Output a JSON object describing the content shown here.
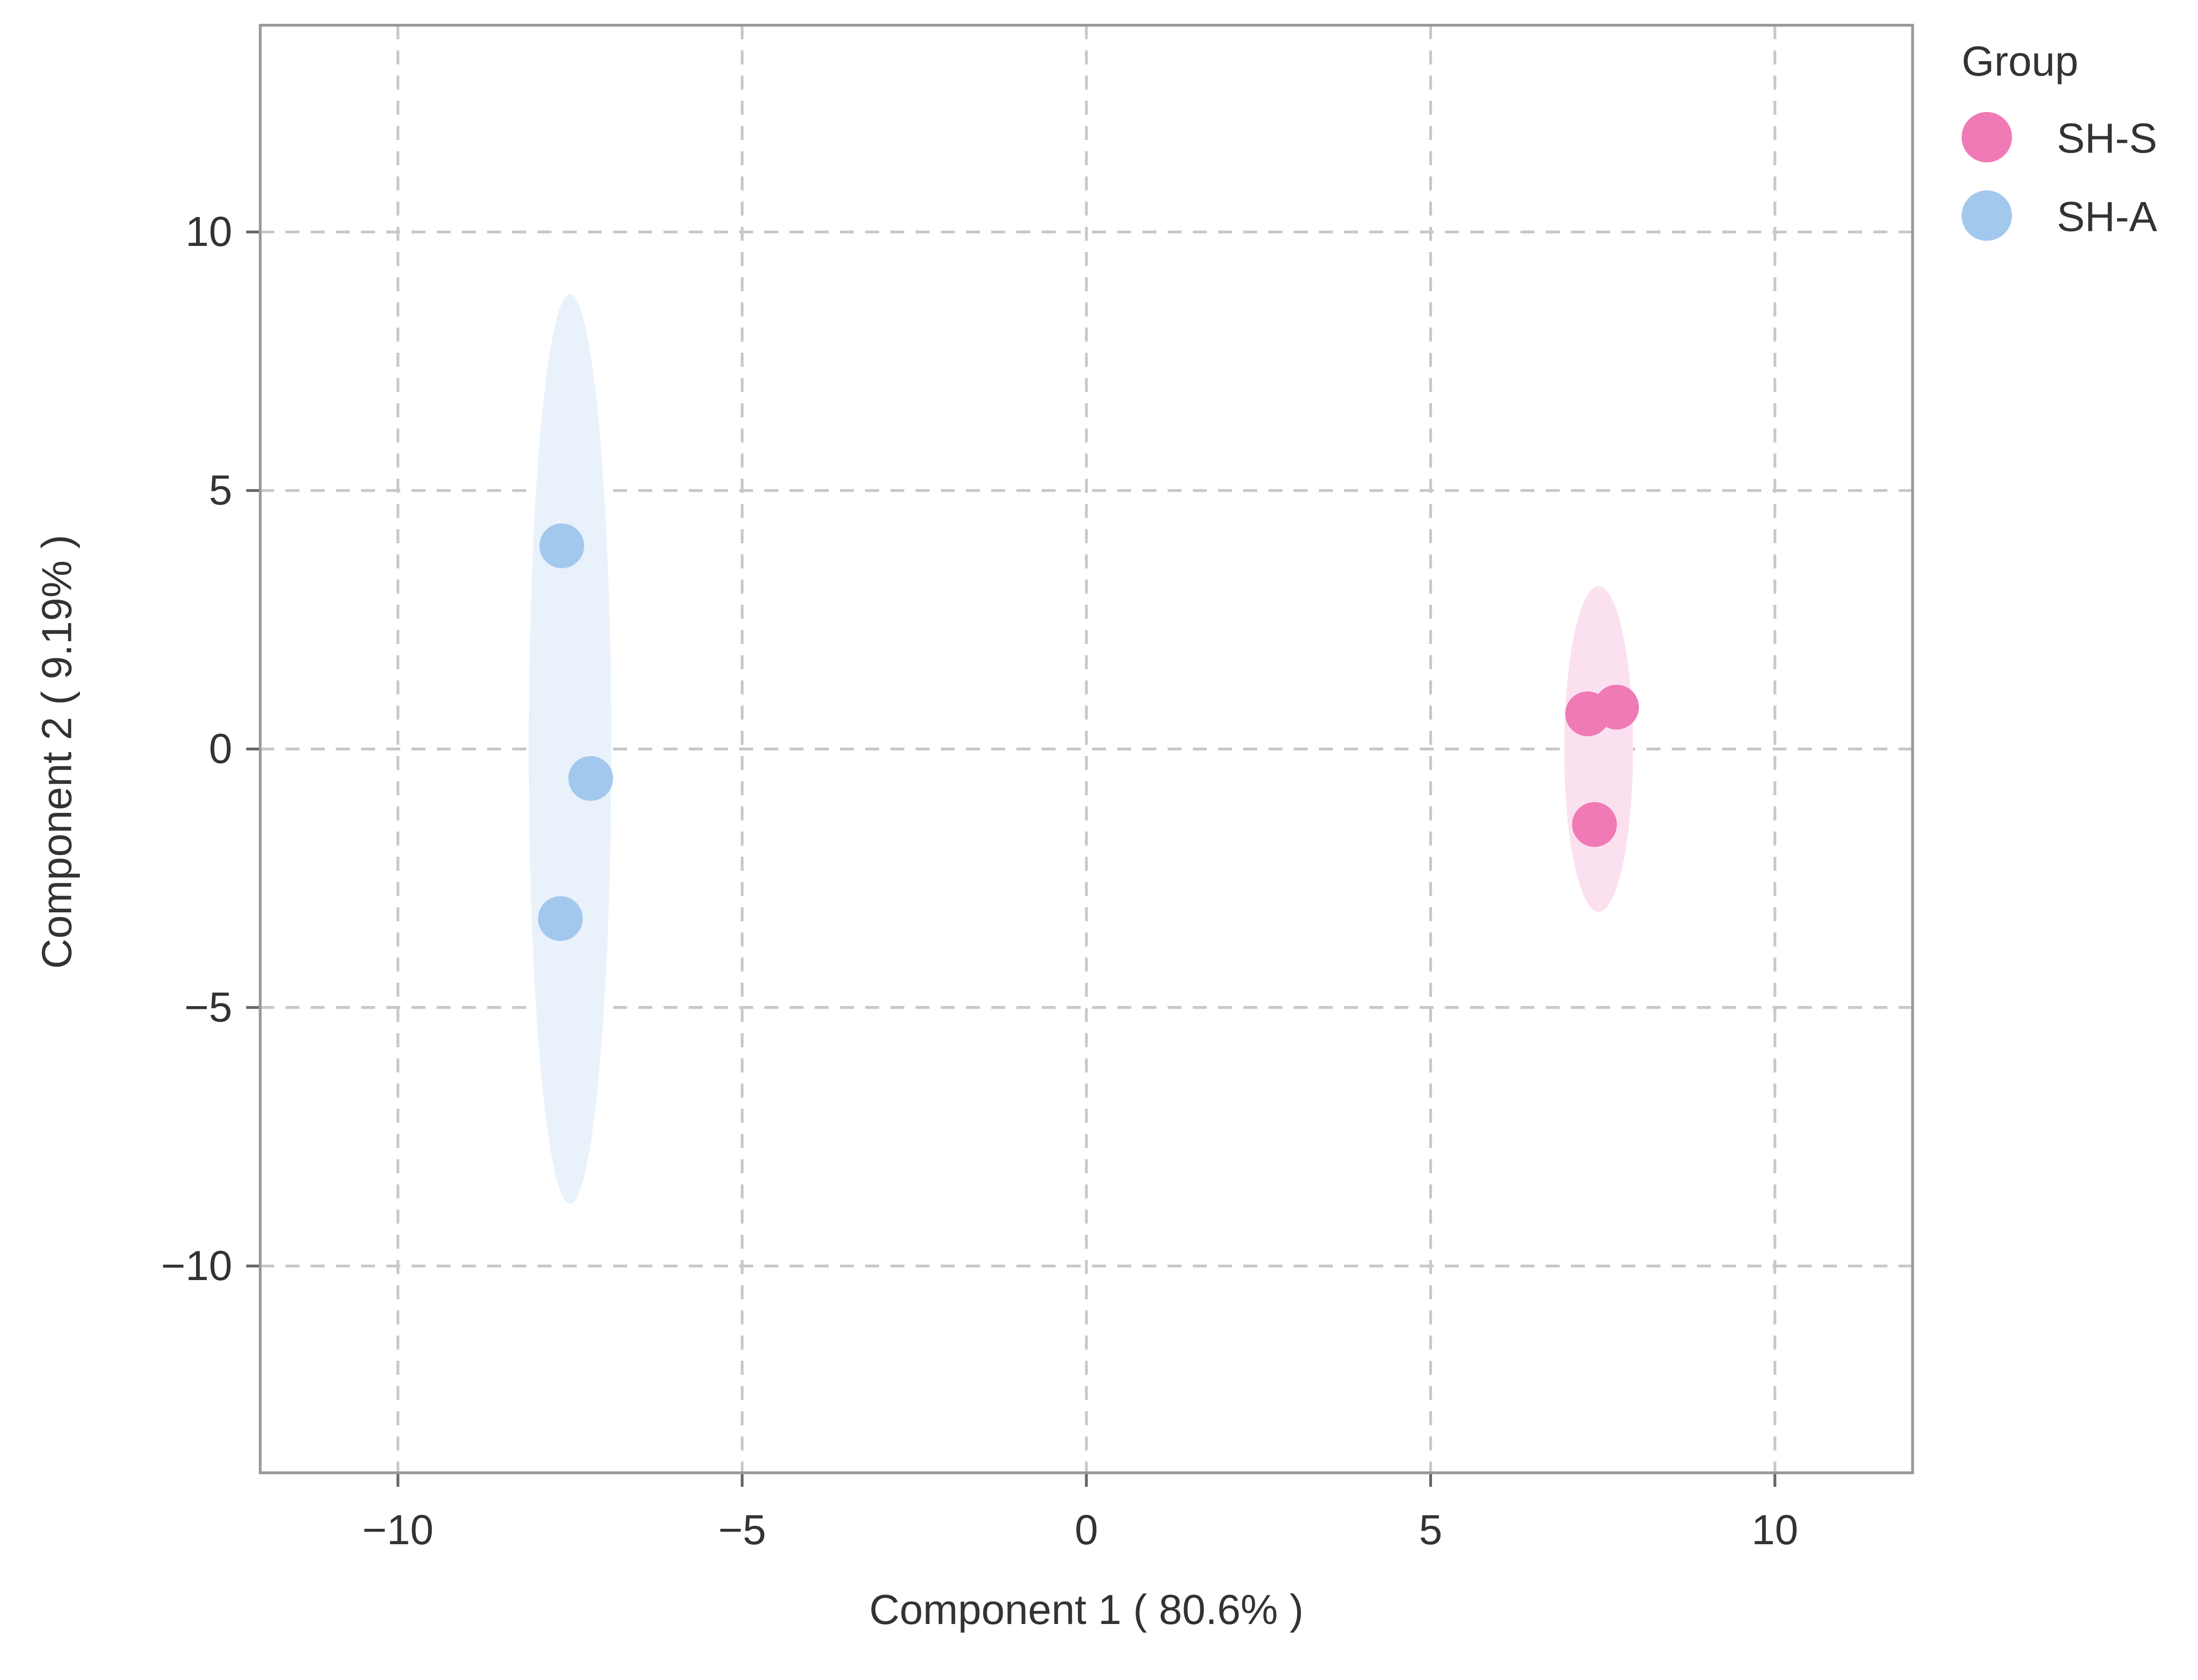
{
  "chart_data": {
    "type": "scatter",
    "x_label": "Component 1 ( 80.6% )",
    "y_label": "Component 2 ( 9.19% )",
    "legend_title": "Group",
    "legend_position": "right",
    "grid": true,
    "xlim": [
      -12,
      12
    ],
    "ylim": [
      -14,
      14
    ],
    "xticks": [
      {
        "value": -10,
        "label": "−10"
      },
      {
        "value": -5,
        "label": "−5"
      },
      0,
      5,
      10
    ],
    "yticks": [
      {
        "value": -10,
        "label": "−10"
      },
      {
        "value": -5,
        "label": "−5"
      },
      0,
      5,
      10
    ],
    "series": [
      {
        "name": "SH-S",
        "color": "#f07ab5",
        "ellipse_color": "#fbe1ef",
        "x": [
          7.28,
          7.7,
          7.38
        ],
        "values": [
          0.68,
          0.81,
          -1.46
        ],
        "ellipse": {
          "cx": 7.44,
          "cy": 0,
          "rx": 0.5,
          "ry": 3.15
        }
      },
      {
        "name": "SH-A",
        "color": "#a3c8ee",
        "ellipse_color": "#e9f2fb",
        "x": [
          -7.62,
          -7.2,
          -7.64
        ],
        "values": [
          3.93,
          -0.57,
          -3.28
        ],
        "ellipse": {
          "cx": -7.5,
          "cy": 0,
          "rx": 0.6,
          "ry": 8.8
        }
      }
    ]
  }
}
